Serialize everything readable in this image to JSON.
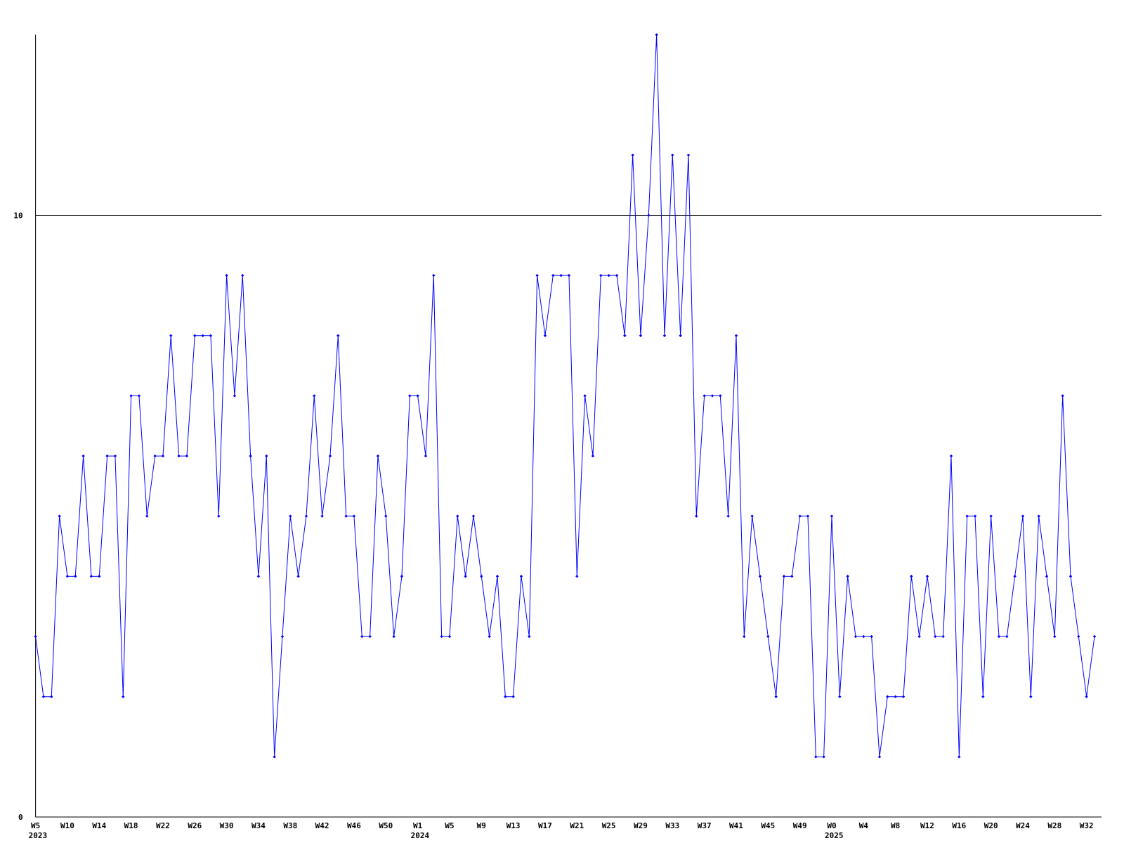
{
  "chart_data": {
    "type": "line",
    "categories": [
      "W5",
      null,
      null,
      null,
      "W10",
      null,
      null,
      null,
      "W14",
      null,
      null,
      null,
      "W18",
      null,
      null,
      null,
      "W22",
      null,
      null,
      null,
      "W26",
      null,
      null,
      null,
      "W30",
      null,
      null,
      null,
      "W34",
      null,
      null,
      null,
      "W38",
      null,
      null,
      null,
      "W42",
      null,
      null,
      null,
      "W46",
      null,
      null,
      null,
      "W50",
      null,
      null,
      null,
      "W1",
      null,
      null,
      null,
      "W5",
      null,
      null,
      null,
      "W9",
      null,
      null,
      null,
      "W13",
      null,
      null,
      null,
      "W17",
      null,
      null,
      null,
      "W21",
      null,
      null,
      null,
      "W25",
      null,
      null,
      null,
      "W29",
      null,
      null,
      null,
      "W33",
      null,
      null,
      null,
      "W37",
      null,
      null,
      null,
      "W41",
      null,
      null,
      null,
      "W45",
      null,
      null,
      null,
      "W49",
      null,
      null,
      null,
      "W0",
      null,
      null,
      null,
      "W4",
      null,
      null,
      null,
      "W8",
      null,
      null,
      null,
      "W12",
      null,
      null,
      null,
      "W16",
      null,
      null,
      null,
      "W20",
      null,
      null,
      null,
      "W24",
      null,
      null,
      null,
      "W28",
      null,
      null,
      null,
      "W32",
      null
    ],
    "year_labels": [
      "2023",
      null,
      null,
      null,
      null,
      null,
      null,
      null,
      null,
      null,
      null,
      null,
      null,
      null,
      null,
      null,
      null,
      null,
      null,
      null,
      null,
      null,
      null,
      null,
      null,
      null,
      null,
      null,
      null,
      null,
      null,
      null,
      null,
      null,
      null,
      null,
      null,
      null,
      null,
      null,
      null,
      null,
      null,
      null,
      null,
      null,
      null,
      null,
      "2024",
      null,
      null,
      null,
      null,
      null,
      null,
      null,
      null,
      null,
      null,
      null,
      null,
      null,
      null,
      null,
      null,
      null,
      null,
      null,
      null,
      null,
      null,
      null,
      null,
      null,
      null,
      null,
      null,
      null,
      null,
      null,
      null,
      null,
      null,
      null,
      null,
      null,
      null,
      null,
      null,
      null,
      null,
      null,
      null,
      null,
      null,
      null,
      null,
      null,
      null,
      null,
      "2025",
      null,
      null,
      null,
      null,
      null,
      null,
      null,
      null,
      null,
      null,
      null,
      null,
      null,
      null,
      null,
      null,
      null,
      null,
      null,
      null,
      null,
      null,
      null,
      null,
      null,
      null,
      null,
      null,
      null,
      null,
      null,
      null,
      null
    ],
    "series": [
      {
        "color": "#0000ff",
        "values": [
          3,
          2,
          2,
          5,
          4,
          4,
          6,
          4,
          4,
          6,
          6,
          2,
          7,
          7,
          5,
          6,
          6,
          8,
          6,
          6,
          8,
          8,
          8,
          5,
          9,
          7,
          9,
          6,
          4,
          6,
          1,
          3,
          5,
          4,
          5,
          7,
          5,
          6,
          8,
          5,
          5,
          3,
          3,
          6,
          5,
          3,
          4,
          7,
          7,
          6,
          9,
          3,
          3,
          5,
          4,
          5,
          4,
          3,
          4,
          2,
          2,
          4,
          3,
          9,
          8,
          9,
          9,
          9,
          4,
          7,
          6,
          9,
          9,
          9,
          8,
          11,
          8,
          10,
          13,
          8,
          11,
          8,
          11,
          5,
          7,
          7,
          7,
          5,
          8,
          3,
          5,
          4,
          3,
          2,
          4,
          4,
          5,
          5,
          1,
          1,
          5,
          2,
          4,
          3,
          3,
          3,
          1,
          2,
          2,
          2,
          4,
          3,
          4,
          3,
          3,
          6,
          1,
          5,
          5,
          2,
          5,
          3,
          3,
          4,
          5,
          2,
          5,
          4,
          3,
          7,
          4,
          3,
          2,
          3
        ]
      }
    ],
    "ylim": [
      0,
      13
    ],
    "yticks": [
      0,
      10
    ],
    "grid": true
  }
}
